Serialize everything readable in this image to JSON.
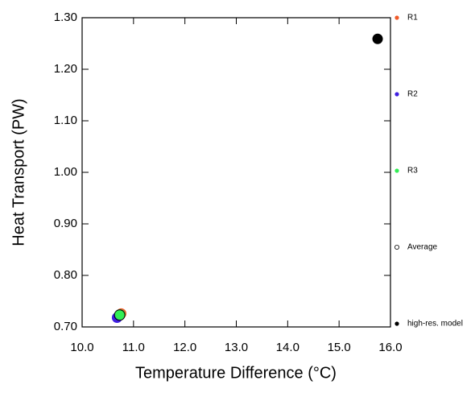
{
  "chart_data": {
    "type": "scatter",
    "x_label": "Temperature Difference (°C)",
    "y_label": "Heat Transport (PW)",
    "xlim": [
      10.0,
      16.0
    ],
    "ylim": [
      0.7,
      1.3
    ],
    "xticks": [
      {
        "value": 10,
        "label": "10.0"
      },
      {
        "value": 11,
        "label": "11.0"
      },
      {
        "value": 12,
        "label": "12.0"
      },
      {
        "value": 13,
        "label": "13.0"
      },
      {
        "value": 14,
        "label": "14.0"
      },
      {
        "value": 15,
        "label": "15.0"
      },
      {
        "value": 16,
        "label": "16.0"
      }
    ],
    "yticks": [
      {
        "value": 0.7,
        "label": "0.70"
      },
      {
        "value": 0.8,
        "label": "0.80"
      },
      {
        "value": 0.9,
        "label": "0.90"
      },
      {
        "value": 1.0,
        "label": "1.00"
      },
      {
        "value": 1.1,
        "label": "1.10"
      },
      {
        "value": 1.2,
        "label": "1.20"
      },
      {
        "value": 1.3,
        "label": "1.30"
      }
    ],
    "series": [
      {
        "name": "R1",
        "color": "#f05a28",
        "marker": "filled",
        "x": [
          10.76
        ],
        "values": [
          0.726
        ]
      },
      {
        "name": "R2",
        "color": "#3f1fe0",
        "marker": "filled",
        "x": [
          10.68
        ],
        "values": [
          0.718
        ]
      },
      {
        "name": "R3",
        "color": "#33ee55",
        "marker": "filled",
        "x": [
          10.74
        ],
        "values": [
          0.724
        ]
      },
      {
        "name": "Average",
        "color": "#000000",
        "marker": "open",
        "x": [
          10.73
        ],
        "values": [
          0.723
        ]
      },
      {
        "name": "high-res. model",
        "color": "#000000",
        "marker": "filled",
        "x": [
          15.75
        ],
        "values": [
          1.259
        ]
      }
    ]
  }
}
